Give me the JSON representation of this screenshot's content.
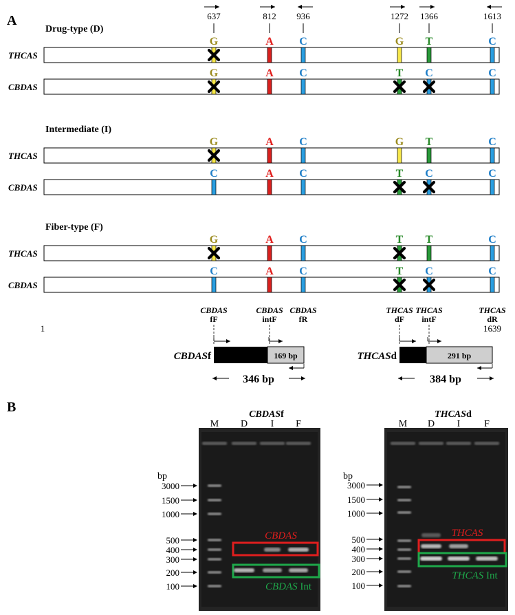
{
  "panel_a": {
    "label": "A",
    "positions": [
      "637",
      "812",
      "936",
      "1272",
      "1366",
      "1613"
    ],
    "groups": [
      {
        "title": "Drug-type (D)",
        "rows": [
          {
            "gene": "THCAS",
            "bases": [
              "G",
              "A",
              "C",
              "G",
              "T",
              "C"
            ]
          },
          {
            "gene": "CBDAS",
            "bases": [
              "G",
              "A",
              "C",
              "T",
              "C",
              "C"
            ]
          }
        ]
      },
      {
        "title": "Intermediate (I)",
        "rows": [
          {
            "gene": "THCAS",
            "bases": [
              "G",
              "A",
              "C",
              "G",
              "T",
              "C"
            ]
          },
          {
            "gene": "CBDAS",
            "bases": [
              "C",
              "A",
              "C",
              "T",
              "C",
              "C"
            ]
          }
        ]
      },
      {
        "title": "Fiber-type (F)",
        "rows": [
          {
            "gene": "THCAS",
            "bases": [
              "G",
              "A",
              "C",
              "T",
              "T",
              "C"
            ]
          },
          {
            "gene": "CBDAS",
            "bases": [
              "C",
              "A",
              "C",
              "T",
              "C",
              "C"
            ]
          }
        ]
      }
    ],
    "base_colors": {
      "G": "#9b8b1e",
      "A": "#e0201e",
      "C": "#1e7ec8",
      "T": "#2a8a2a"
    },
    "bar_colors": {
      "G": "#f7e84a",
      "A": "#d8201e",
      "C": "#2a9ee0",
      "T": "#2a9a3a"
    },
    "primers": [
      {
        "gene": "CBDAS",
        "type": "fF"
      },
      {
        "gene": "CBDAS",
        "type": "intF"
      },
      {
        "gene": "CBDAS",
        "type": "fR"
      },
      {
        "gene": "THCAS",
        "type": "dF"
      },
      {
        "gene": "THCAS",
        "type": "intF"
      },
      {
        "gene": "THCAS",
        "type": "dR"
      }
    ],
    "start_label": "1",
    "end_label": "1639",
    "amplicons": [
      {
        "name_italic": "CBDAS",
        "suffix": "f",
        "inner": "169 bp",
        "total": "346 bp"
      },
      {
        "name_italic": "THCAS",
        "suffix": "d",
        "inner": "291 bp",
        "total": "384 bp"
      }
    ]
  },
  "panel_b": {
    "label": "B",
    "bp_unit": "bp",
    "ladder": [
      "3000",
      "1500",
      "1000",
      "500",
      "400",
      "300",
      "200",
      "100"
    ],
    "gels": [
      {
        "title_italic": "CBDAS",
        "title_suffix": "f",
        "lanes": [
          "M",
          "D",
          "I",
          "F"
        ],
        "box_top_label": "CBDAS",
        "box_top_suffix": "",
        "box_bottom_label": "CBDAS",
        "box_bottom_suffix": " Int"
      },
      {
        "title_italic": "THCAS",
        "title_suffix": "d",
        "lanes": [
          "M",
          "D",
          "I",
          "F"
        ],
        "box_top_label": "THCAS",
        "box_top_suffix": "",
        "box_bottom_label": "THCAS",
        "box_bottom_suffix": " Int"
      }
    ]
  }
}
